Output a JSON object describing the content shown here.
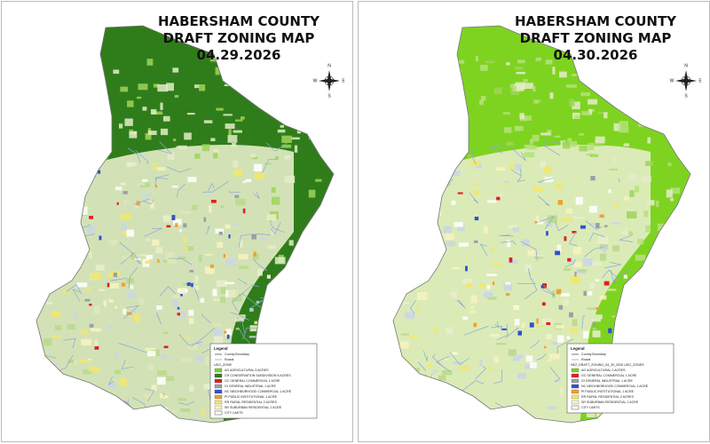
{
  "panels": [
    {
      "title_lines": [
        "HABERSHAM COUNTY",
        "DRAFT ZONING MAP",
        "04.29.2026"
      ],
      "base_color": "#2f7d1a",
      "compass": {
        "n": "N",
        "e": "E",
        "s": "S",
        "w": "W"
      },
      "legend": {
        "title": "Legend",
        "lines": [
          "County Boundary",
          "Roads"
        ],
        "group": "UDO_ZONE",
        "items": [
          {
            "label": "AG AGRICULTURAL 5 ACRES",
            "color": "#7ed321"
          },
          {
            "label": "CR CONSERVATION SUBDIVISION 5 ACRES",
            "color": "#2f7d1a"
          },
          {
            "label": "GC GENERAL COMMERCIAL 1 ACRE",
            "color": "#e02020"
          },
          {
            "label": "GI GENERAL INDUSTRIAL 1 ACRE",
            "color": "#9aa0a6"
          },
          {
            "label": "NC NEIGHBORHOOD COMMERCIAL 1 ACRE",
            "color": "#3050d0"
          },
          {
            "label": "PI PUBLIC INSTITUTIONAL 1 ACRE",
            "color": "#f0a030"
          },
          {
            "label": "RR RURAL RESIDENTIAL 2 ACRES",
            "color": "#f2e86a"
          },
          {
            "label": "SR SUBURBAN RESIDENTIAL 1 ACRE",
            "color": "#f7f3c0"
          }
        ],
        "footer": "CITY LIMITS"
      }
    },
    {
      "title_lines": [
        "HABERSHAM COUNTY",
        "DRAFT ZONING MAP",
        "04.30.2026"
      ],
      "base_color": "#7ed321",
      "compass": {
        "n": "N",
        "e": "E",
        "s": "S",
        "w": "W"
      },
      "legend": {
        "title": "Legend",
        "lines": [
          "County Boundary",
          "Roads"
        ],
        "group": "NEZ_DRAFT_ZONING_04_30_2026 UDO_ZONES",
        "items": [
          {
            "label": "AG AGRICULTURAL 2 ACRES",
            "color": "#7ed321"
          },
          {
            "label": "GC GENERAL COMMERCIAL 1 ACRE",
            "color": "#e02020"
          },
          {
            "label": "GI GENERAL INDUSTRIAL 1 ACRE",
            "color": "#9aa0a6"
          },
          {
            "label": "NC NEIGHBORHOOD COMMERCIAL 1 ACRE",
            "color": "#3050d0"
          },
          {
            "label": "PI PUBLIC INSTITUTIONAL 1 ACRE",
            "color": "#f0a030"
          },
          {
            "label": "RR RURAL RESIDENTIAL 2 ACRES",
            "color": "#f2e86a"
          },
          {
            "label": "SR SUBURBAN RESIDENTIAL 1 ACRE",
            "color": "#f7f3c0"
          }
        ],
        "footer": "CITY LIMITS"
      }
    }
  ]
}
